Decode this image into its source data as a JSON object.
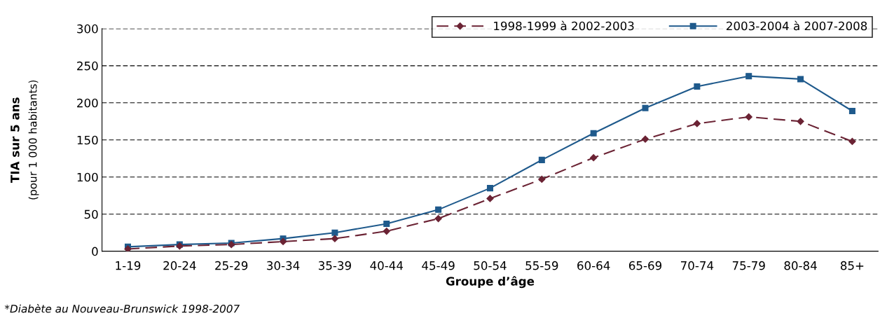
{
  "chart_data": {
    "type": "line",
    "categories": [
      "1-19",
      "20-24",
      "25-29",
      "30-34",
      "35-39",
      "40-44",
      "45-49",
      "50-54",
      "55-59",
      "60-64",
      "65-69",
      "70-74",
      "75-79",
      "80-84",
      "85+"
    ],
    "series": [
      {
        "name": "1998-1999 à 2002-2003",
        "color": "#6b2334",
        "marker": "diamond",
        "line_style": "dashed",
        "values": [
          3,
          7,
          9,
          13,
          17,
          27,
          44,
          71,
          97,
          126,
          151,
          172,
          181,
          175,
          148
        ]
      },
      {
        "name": "2003-2004 à 2007-2008",
        "color": "#1f5a8c",
        "marker": "square",
        "line_style": "solid",
        "values": [
          6,
          9,
          11,
          17,
          25,
          37,
          56,
          85,
          123,
          159,
          193,
          222,
          236,
          232,
          189
        ]
      }
    ],
    "xlabel": "Groupe d’âge",
    "ylabel": "TIA sur 5 ans\n(pour 1 000 habitants)",
    "ylim": [
      0,
      300
    ],
    "yticks": [
      0,
      50,
      100,
      150,
      200,
      250,
      300
    ],
    "grid": "y",
    "legend": "top right",
    "annotations": [
      "*Diabète au Nouveau-Brunswick 1998-2007"
    ]
  }
}
